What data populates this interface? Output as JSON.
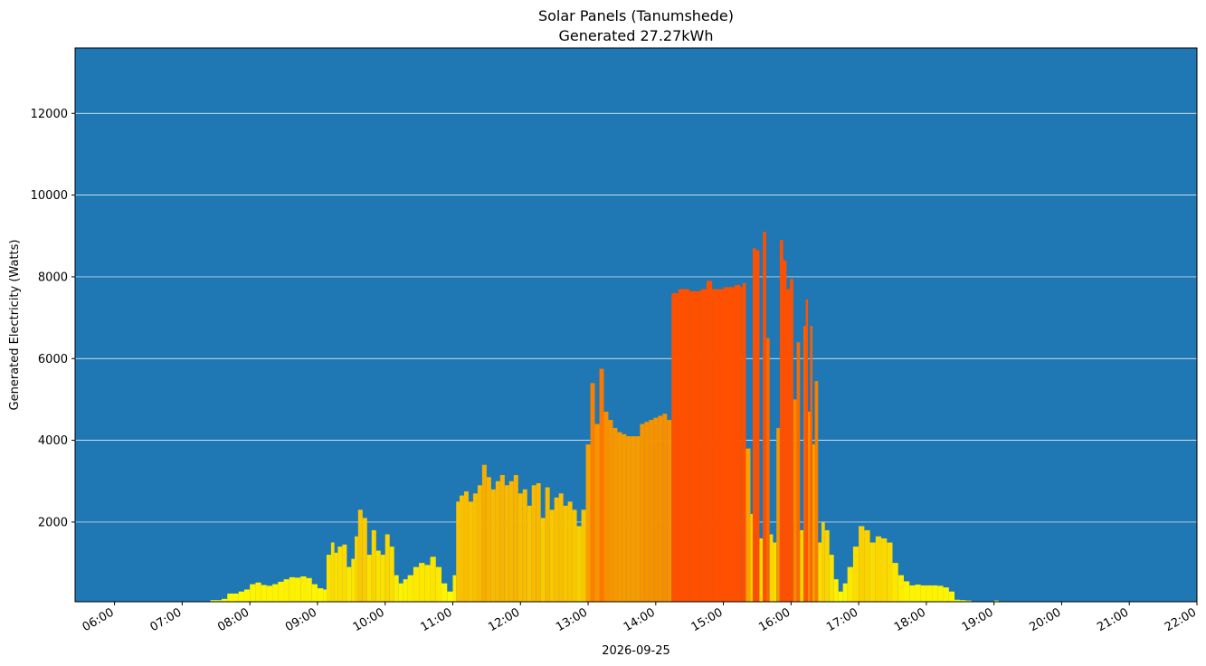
{
  "chart_data": {
    "type": "bar",
    "title": "Solar Panels (Tanumshede)",
    "subtitle": "Generated 27.27kWh",
    "xlabel": "2026-09-25",
    "ylabel": "Generated Electricity (Watts)",
    "xlim": [
      "05:25",
      "22:00"
    ],
    "ylim": [
      50,
      13600
    ],
    "grid": "horizontal",
    "background_color": "#1f77b4",
    "grid_color": "#ffffff",
    "color_scale": {
      "low": "#ffff00",
      "mid": "#f59a00",
      "high": "#ff5000"
    },
    "yticks": [
      2000,
      4000,
      6000,
      8000,
      10000,
      12000
    ],
    "xticks": [
      "06:00",
      "07:00",
      "08:00",
      "09:00",
      "10:00",
      "11:00",
      "12:00",
      "13:00",
      "14:00",
      "15:00",
      "16:00",
      "17:00",
      "18:00",
      "19:00",
      "20:00",
      "21:00",
      "22:00"
    ],
    "points": [
      [
        "07:00",
        50
      ],
      [
        "07:20",
        60
      ],
      [
        "07:25",
        90
      ],
      [
        "07:35",
        120
      ],
      [
        "07:40",
        250
      ],
      [
        "07:50",
        300
      ],
      [
        "07:55",
        350
      ],
      [
        "08:00",
        480
      ],
      [
        "08:05",
        520
      ],
      [
        "08:10",
        460
      ],
      [
        "08:15",
        440
      ],
      [
        "08:20",
        480
      ],
      [
        "08:25",
        540
      ],
      [
        "08:30",
        600
      ],
      [
        "08:35",
        650
      ],
      [
        "08:40",
        640
      ],
      [
        "08:45",
        670
      ],
      [
        "08:50",
        630
      ],
      [
        "08:55",
        480
      ],
      [
        "09:00",
        380
      ],
      [
        "09:05",
        350
      ],
      [
        "09:08",
        1200
      ],
      [
        "09:12",
        1500
      ],
      [
        "09:15",
        1250
      ],
      [
        "09:18",
        1400
      ],
      [
        "09:22",
        1450
      ],
      [
        "09:26",
        900
      ],
      [
        "09:30",
        1100
      ],
      [
        "09:33",
        1650
      ],
      [
        "09:36",
        2300
      ],
      [
        "09:40",
        2100
      ],
      [
        "09:44",
        1200
      ],
      [
        "09:48",
        1800
      ],
      [
        "09:52",
        1300
      ],
      [
        "09:56",
        1200
      ],
      [
        "10:00",
        1700
      ],
      [
        "10:04",
        1400
      ],
      [
        "10:08",
        700
      ],
      [
        "10:12",
        500
      ],
      [
        "10:16",
        600
      ],
      [
        "10:20",
        700
      ],
      [
        "10:25",
        900
      ],
      [
        "10:30",
        1000
      ],
      [
        "10:35",
        950
      ],
      [
        "10:40",
        1150
      ],
      [
        "10:45",
        900
      ],
      [
        "10:50",
        500
      ],
      [
        "10:55",
        300
      ],
      [
        "11:00",
        700
      ],
      [
        "11:03",
        2500
      ],
      [
        "11:06",
        2650
      ],
      [
        "11:10",
        2750
      ],
      [
        "11:14",
        2500
      ],
      [
        "11:18",
        2700
      ],
      [
        "11:22",
        2900
      ],
      [
        "11:26",
        3400
      ],
      [
        "11:30",
        3100
      ],
      [
        "11:34",
        2800
      ],
      [
        "11:38",
        3000
      ],
      [
        "11:42",
        3150
      ],
      [
        "11:46",
        2900
      ],
      [
        "11:50",
        3000
      ],
      [
        "11:54",
        3150
      ],
      [
        "11:58",
        2700
      ],
      [
        "12:02",
        2800
      ],
      [
        "12:06",
        2400
      ],
      [
        "12:10",
        2900
      ],
      [
        "12:14",
        2950
      ],
      [
        "12:18",
        2100
      ],
      [
        "12:22",
        2850
      ],
      [
        "12:26",
        2300
      ],
      [
        "12:30",
        2600
      ],
      [
        "12:34",
        2700
      ],
      [
        "12:38",
        2400
      ],
      [
        "12:42",
        2500
      ],
      [
        "12:46",
        2300
      ],
      [
        "12:50",
        1900
      ],
      [
        "12:54",
        2300
      ],
      [
        "12:58",
        3900
      ],
      [
        "13:02",
        5400
      ],
      [
        "13:06",
        4400
      ],
      [
        "13:10",
        5750
      ],
      [
        "13:14",
        4700
      ],
      [
        "13:18",
        4500
      ],
      [
        "13:22",
        4300
      ],
      [
        "13:26",
        4200
      ],
      [
        "13:30",
        4150
      ],
      [
        "13:34",
        4100
      ],
      [
        "13:38",
        4100
      ],
      [
        "13:42",
        4100
      ],
      [
        "13:46",
        4400
      ],
      [
        "13:50",
        4450
      ],
      [
        "13:54",
        4500
      ],
      [
        "13:58",
        4550
      ],
      [
        "14:02",
        4600
      ],
      [
        "14:06",
        4650
      ],
      [
        "14:10",
        4500
      ],
      [
        "14:14",
        7600
      ],
      [
        "14:20",
        7700
      ],
      [
        "14:30",
        7650
      ],
      [
        "14:40",
        7700
      ],
      [
        "14:45",
        7900
      ],
      [
        "14:50",
        7700
      ],
      [
        "15:00",
        7750
      ],
      [
        "15:10",
        7800
      ],
      [
        "15:15",
        7750
      ],
      [
        "15:17",
        7850
      ],
      [
        "15:20",
        3800
      ],
      [
        "15:24",
        2200
      ],
      [
        "15:26",
        8700
      ],
      [
        "15:29",
        8650
      ],
      [
        "15:32",
        1600
      ],
      [
        "15:35",
        9100
      ],
      [
        "15:38",
        6500
      ],
      [
        "15:41",
        1700
      ],
      [
        "15:44",
        1500
      ],
      [
        "15:47",
        4300
      ],
      [
        "15:50",
        8900
      ],
      [
        "15:53",
        8400
      ],
      [
        "15:56",
        7700
      ],
      [
        "15:59",
        7950
      ],
      [
        "16:02",
        5000
      ],
      [
        "16:05",
        6400
      ],
      [
        "16:08",
        1800
      ],
      [
        "16:11",
        6800
      ],
      [
        "16:13",
        7450
      ],
      [
        "16:15",
        4700
      ],
      [
        "16:17",
        6800
      ],
      [
        "16:19",
        3900
      ],
      [
        "16:21",
        5450
      ],
      [
        "16:24",
        1500
      ],
      [
        "16:27",
        2000
      ],
      [
        "16:30",
        1800
      ],
      [
        "16:34",
        1200
      ],
      [
        "16:38",
        600
      ],
      [
        "16:42",
        300
      ],
      [
        "16:46",
        500
      ],
      [
        "16:50",
        900
      ],
      [
        "16:55",
        1400
      ],
      [
        "17:00",
        1900
      ],
      [
        "17:05",
        1800
      ],
      [
        "17:10",
        1500
      ],
      [
        "17:15",
        1650
      ],
      [
        "17:20",
        1600
      ],
      [
        "17:25",
        1500
      ],
      [
        "17:30",
        1000
      ],
      [
        "17:35",
        700
      ],
      [
        "17:40",
        550
      ],
      [
        "17:45",
        450
      ],
      [
        "17:50",
        470
      ],
      [
        "17:55",
        450
      ],
      [
        "18:00",
        450
      ],
      [
        "18:05",
        450
      ],
      [
        "18:10",
        440
      ],
      [
        "18:15",
        400
      ],
      [
        "18:20",
        300
      ],
      [
        "18:25",
        100
      ],
      [
        "18:30",
        90
      ],
      [
        "18:35",
        80
      ],
      [
        "18:40",
        60
      ],
      [
        "19:00",
        80
      ]
    ]
  }
}
